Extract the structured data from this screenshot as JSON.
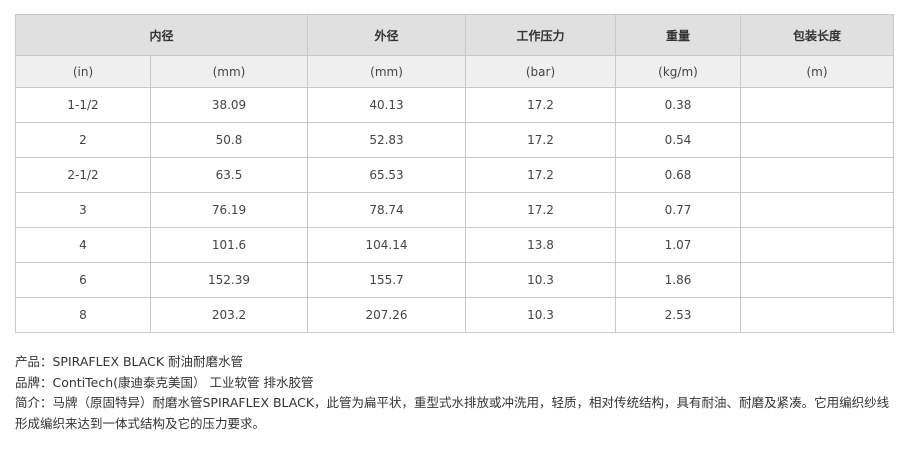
{
  "headers": [
    "内径",
    "外径",
    "工作压力",
    "重量",
    "包装长度"
  ],
  "units": [
    "(in)",
    "(mm)",
    "(mm)",
    "(bar)",
    "(kg/m)",
    "(m)"
  ],
  "rows": [
    [
      "1-1/2",
      "38.09",
      "40.13",
      "17.2",
      "0.38",
      ""
    ],
    [
      "2",
      "50.8",
      "52.83",
      "17.2",
      "0.54",
      ""
    ],
    [
      "2-1/2",
      "63.5",
      "65.53",
      "17.2",
      "0.68",
      ""
    ],
    [
      "3",
      "76.19",
      "78.74",
      "17.2",
      "0.77",
      ""
    ],
    [
      "4",
      "101.6",
      "104.14",
      "13.8",
      "1.07",
      ""
    ],
    [
      "6",
      "152.39",
      "155.7",
      "10.3",
      "1.86",
      ""
    ],
    [
      "8",
      "203.2",
      "207.26",
      "10.3",
      "2.53",
      ""
    ]
  ],
  "description": {
    "product": "产品：SPIRAFLEX BLACK 耐油耐磨水管",
    "brand": "品牌：ContiTech(康迪泰克美国） 工业软管 排水胶管",
    "intro": "简介：马牌（原固特异）耐磨水管SPIRAFLEX BLACK，此管为扁平状，重型式水排放或冲洗用，轻质，相对传统结构，具有耐油、耐磨及紧凑。它用编织纱线形成编织来达到一体式结构及它的压力要求。"
  }
}
